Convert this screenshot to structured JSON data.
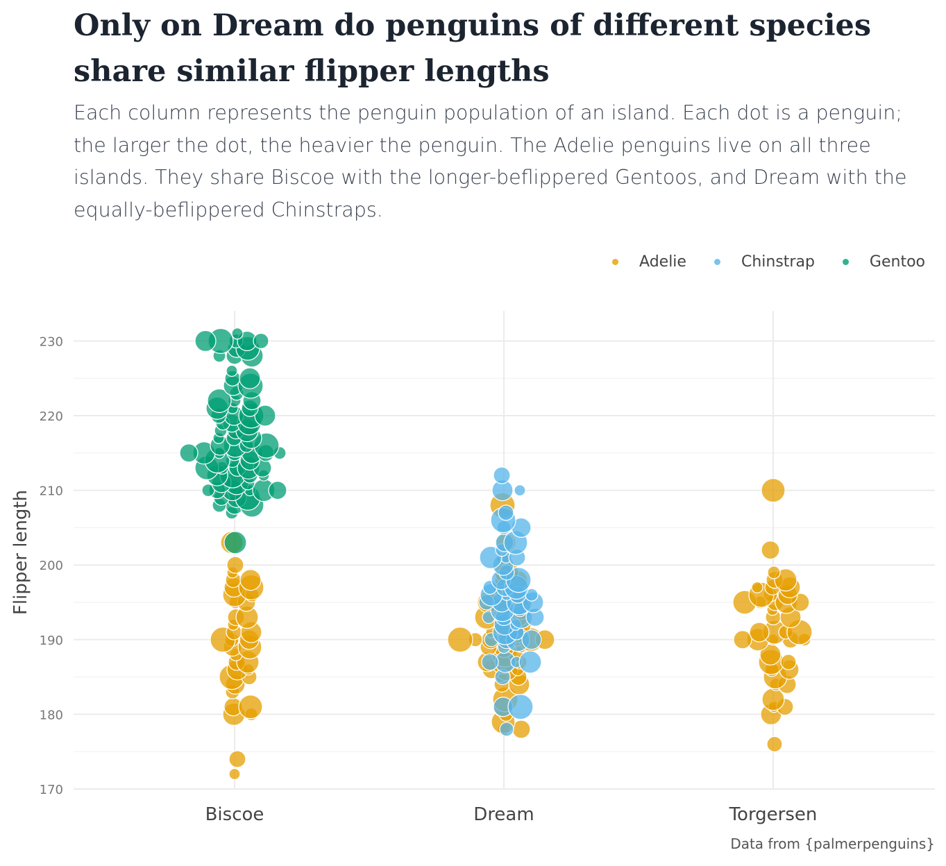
{
  "header": {
    "title": "Only on Dream do penguins of different species share similar flipper lengths",
    "subtitle": "Each column represents the penguin population of an island. Each dot is a penguin; the larger the dot, the heavier the penguin. The Adelie penguins live on all three islands. They share Biscoe with the longer-beflippered Gentoos, and Dream with the equally-beflippered Chinstraps."
  },
  "caption": "Data from {palmerpenguins}",
  "colors": {
    "Adelie": "#E69F00",
    "Chinstrap": "#56B4E9",
    "Gentoo": "#009E73",
    "grid": "#ececec",
    "axis_text": "#777777"
  },
  "chart_data": {
    "type": "scatter",
    "subtype": "beeswarm",
    "categories": [
      "Biscoe",
      "Dream",
      "Torgersen"
    ],
    "ylabel": "Flipper length",
    "xlabel": "",
    "ylim": [
      170,
      233
    ],
    "yticks": [
      170,
      180,
      190,
      200,
      210,
      220,
      230
    ],
    "grid": true,
    "legend": {
      "position": "top-right",
      "entries": [
        "Adelie",
        "Chinstrap",
        "Gentoo"
      ]
    },
    "series": [
      {
        "name": "Adelie",
        "points": {
          "Biscoe": [
            172,
            174,
            180,
            180,
            181,
            181,
            183,
            184,
            185,
            185,
            186,
            186,
            187,
            187,
            188,
            189,
            189,
            190,
            190,
            190,
            191,
            191,
            192,
            193,
            193,
            195,
            195,
            196,
            196,
            197,
            197,
            198,
            198,
            199,
            200,
            203
          ],
          "Dream": [
            178,
            178,
            179,
            180,
            181,
            182,
            184,
            184,
            185,
            185,
            186,
            186,
            186,
            187,
            187,
            187,
            188,
            188,
            189,
            189,
            189,
            190,
            190,
            190,
            190,
            190,
            190,
            190,
            191,
            191,
            191,
            192,
            192,
            193,
            193,
            193,
            194,
            194,
            195,
            195,
            195,
            196,
            196,
            197,
            198,
            198,
            199,
            201,
            203,
            208
          ],
          "Torgersen": [
            176,
            180,
            181,
            181,
            182,
            184,
            184,
            185,
            186,
            186,
            187,
            187,
            188,
            190,
            190,
            190,
            190,
            190,
            191,
            191,
            191,
            191,
            193,
            193,
            194,
            195,
            195,
            195,
            195,
            195,
            196,
            196,
            196,
            197,
            197,
            197,
            198,
            198,
            199,
            202,
            210
          ]
        }
      },
      {
        "name": "Chinstrap",
        "points": {
          "Dream": [
            178,
            181,
            181,
            185,
            187,
            187,
            187,
            187,
            189,
            190,
            190,
            190,
            190,
            191,
            191,
            192,
            192,
            193,
            193,
            193,
            193,
            194,
            194,
            195,
            195,
            195,
            195,
            196,
            196,
            196,
            196,
            197,
            197,
            197,
            198,
            198,
            199,
            200,
            201,
            201,
            201,
            202,
            203,
            203,
            205,
            205,
            206,
            207,
            210,
            210,
            212
          ]
        }
      },
      {
        "name": "Gentoo",
        "points": {
          "Biscoe": [
            203,
            207,
            208,
            208,
            208,
            209,
            209,
            209,
            210,
            210,
            210,
            210,
            210,
            210,
            211,
            211,
            211,
            212,
            212,
            212,
            212,
            213,
            213,
            213,
            213,
            213,
            214,
            214,
            214,
            215,
            215,
            215,
            215,
            215,
            215,
            215,
            216,
            216,
            216,
            216,
            217,
            217,
            217,
            218,
            218,
            218,
            219,
            219,
            219,
            220,
            220,
            220,
            220,
            221,
            221,
            221,
            222,
            222,
            222,
            223,
            224,
            224,
            225,
            225,
            226,
            228,
            228,
            228,
            229,
            229,
            230,
            230,
            230,
            230,
            230,
            231
          ]
        }
      }
    ]
  }
}
